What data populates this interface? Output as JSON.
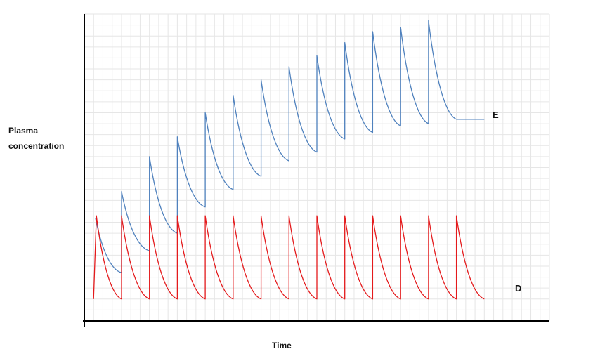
{
  "chart_data": {
    "type": "line",
    "title": "",
    "xlabel": "Time",
    "ylabel_lines": [
      "Plasma",
      "concentration"
    ],
    "grid": true,
    "axis_ticks": false,
    "xlim": [
      0,
      50
    ],
    "ylim": [
      0,
      140
    ],
    "colors": {
      "grid": "#e6e6e6",
      "axis": "#000000",
      "E": "#4f81bd",
      "D": "#e41a1c"
    },
    "series": [
      {
        "name": "E",
        "line_end_x": 45,
        "points": [
          [
            1.2,
            47
          ],
          [
            4,
            22
          ],
          [
            4,
            59
          ],
          [
            7,
            32
          ],
          [
            7,
            75
          ],
          [
            10,
            40
          ],
          [
            10,
            84
          ],
          [
            13,
            52
          ],
          [
            13,
            95
          ],
          [
            16,
            60
          ],
          [
            16,
            103
          ],
          [
            19,
            66
          ],
          [
            19,
            110
          ],
          [
            22,
            73
          ],
          [
            22,
            116
          ],
          [
            25,
            77
          ],
          [
            25,
            121
          ],
          [
            28,
            83
          ],
          [
            28,
            127
          ],
          [
            31,
            86
          ],
          [
            31,
            132
          ],
          [
            34,
            89
          ],
          [
            34,
            134
          ],
          [
            37,
            90
          ],
          [
            37,
            137
          ],
          [
            40,
            92
          ]
        ],
        "final_decay": [
          [
            40,
            137
          ],
          [
            43,
            92
          ]
        ]
      },
      {
        "name": "D",
        "line_end_x": 46,
        "points": [
          [
            1,
            10
          ],
          [
            1.3,
            48
          ],
          [
            4,
            10
          ],
          [
            4,
            48
          ],
          [
            7,
            10
          ],
          [
            7,
            48
          ],
          [
            10,
            10
          ],
          [
            10,
            48
          ],
          [
            13,
            10
          ],
          [
            13,
            48
          ],
          [
            16,
            10
          ],
          [
            16,
            48
          ],
          [
            19,
            10
          ],
          [
            19,
            48
          ],
          [
            22,
            10
          ],
          [
            22,
            48
          ],
          [
            25,
            10
          ],
          [
            25,
            48
          ],
          [
            28,
            10
          ],
          [
            28,
            48
          ],
          [
            31,
            10
          ],
          [
            31,
            48
          ],
          [
            34,
            10
          ],
          [
            34,
            48
          ],
          [
            37,
            10
          ],
          [
            37,
            48
          ],
          [
            40,
            10
          ],
          [
            40,
            48
          ],
          [
            43,
            10
          ]
        ]
      }
    ]
  }
}
